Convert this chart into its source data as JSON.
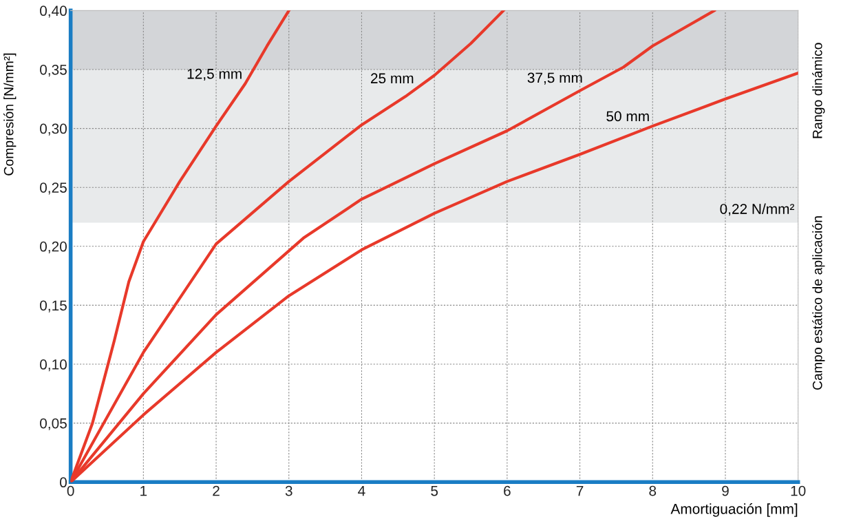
{
  "chart_data": {
    "type": "line",
    "xlabel": "Amortiguación [mm]",
    "ylabel": "Compresión [N/mm²]",
    "xlim": [
      0,
      10
    ],
    "ylim": [
      0,
      0.4
    ],
    "xticks": [
      0,
      1,
      2,
      3,
      4,
      5,
      6,
      7,
      8,
      9,
      10
    ],
    "yticks": [
      0,
      {
        "value": 0.05,
        "label": "0,05"
      },
      {
        "value": 0.1,
        "label": "0,10"
      },
      {
        "value": 0.15,
        "label": "0,15"
      },
      {
        "value": 0.2,
        "label": "0,20"
      },
      {
        "value": 0.25,
        "label": "0,25"
      },
      {
        "value": 0.3,
        "label": "0,30"
      },
      {
        "value": 0.35,
        "label": "0,35"
      },
      {
        "value": 0.4,
        "label": "0,40"
      }
    ],
    "grid": true,
    "legend": false,
    "marker": "none",
    "line_style": "solid",
    "bands": [
      {
        "axis": "y",
        "from": 0.22,
        "to": 0.35,
        "label": "0,22 N/mm²",
        "color": "#e8eaeb"
      },
      {
        "axis": "y",
        "from": 0.35,
        "to": 0.4,
        "color": "#d3d5d8"
      }
    ],
    "annotations": [
      "Rango dinámico",
      "Campo estático de aplicación"
    ],
    "series": [
      {
        "name": "12,5 mm",
        "color": "#e8392a",
        "x": [
          0,
          0.3,
          0.6,
          0.8,
          1,
          1.5,
          2,
          2.4,
          2.7,
          3
        ],
        "values": [
          0,
          0.05,
          0.12,
          0.17,
          0.204,
          0.255,
          0.302,
          0.338,
          0.37,
          0.4
        ]
      },
      {
        "name": "25 mm",
        "color": "#e8392a",
        "x": [
          0,
          1,
          2,
          3,
          4,
          4.6,
          5,
          5.5,
          5.95
        ],
        "values": [
          0,
          0.11,
          0.202,
          0.255,
          0.303,
          0.327,
          0.345,
          0.372,
          0.4
        ]
      },
      {
        "name": "37,5 mm",
        "color": "#e8392a",
        "x": [
          0,
          1,
          2,
          3.2,
          4,
          5,
          6,
          7,
          7.6,
          8,
          8.85
        ],
        "values": [
          0,
          0.075,
          0.142,
          0.207,
          0.24,
          0.27,
          0.298,
          0.332,
          0.352,
          0.37,
          0.4
        ]
      },
      {
        "name": "50 mm",
        "color": "#e8392a",
        "x": [
          0,
          1,
          2,
          3,
          4,
          5,
          6,
          7,
          8,
          9,
          10
        ],
        "values": [
          0,
          0.057,
          0.11,
          0.158,
          0.197,
          0.228,
          0.255,
          0.278,
          0.302,
          0.325,
          0.347
        ]
      }
    ]
  }
}
